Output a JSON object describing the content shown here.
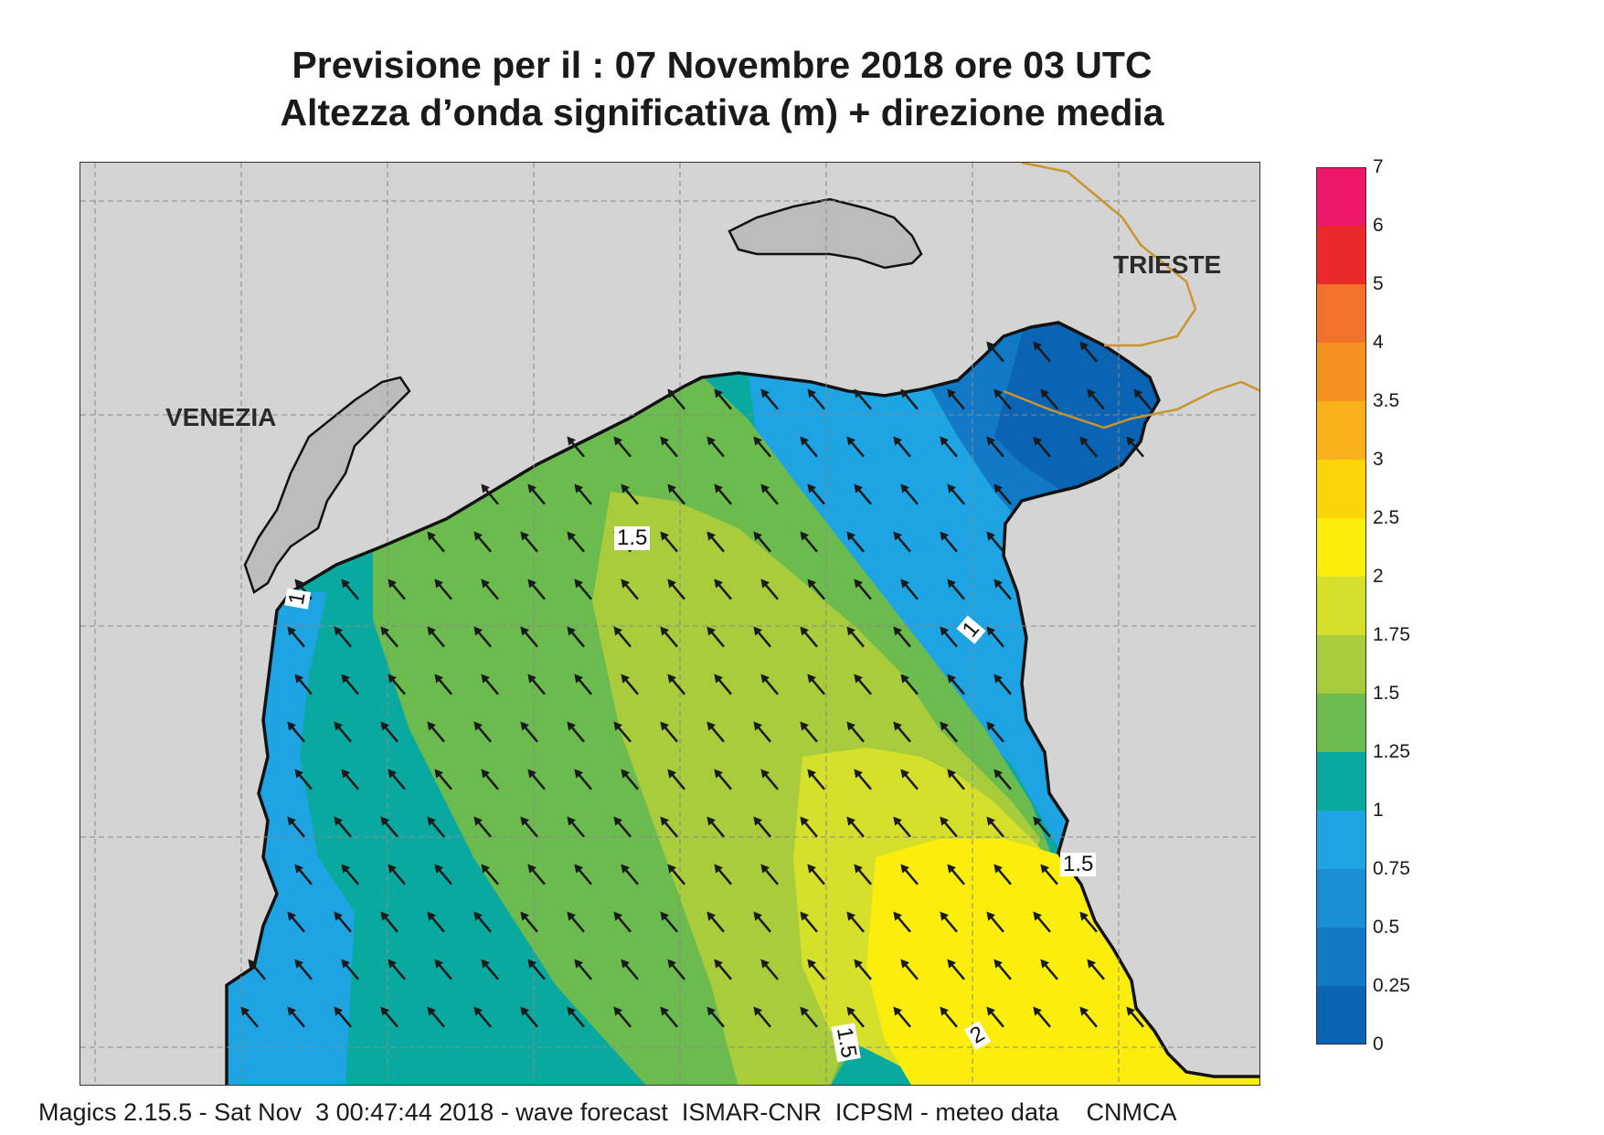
{
  "title": {
    "line1": "Previsione per il  :  07 Novembre  2018   ore 03 UTC",
    "line2": "Altezza d’onda significativa (m) + direzione media"
  },
  "map": {
    "cities": [
      {
        "id": "venezia",
        "name": "VENEZIA"
      },
      {
        "id": "trieste",
        "name": "TRIESTE"
      }
    ],
    "contour_labels": [
      {
        "id": "c1",
        "text": "1.5"
      },
      {
        "id": "c2",
        "text": "1"
      },
      {
        "id": "c3",
        "text": "1"
      },
      {
        "id": "c4",
        "text": "1.5"
      },
      {
        "id": "c5",
        "text": "1.5"
      },
      {
        "id": "c6",
        "text": "2"
      }
    ],
    "colors": {
      "land": "#d4d4d4",
      "c_0_25": "#0b63b3",
      "c_25_50": "#1179c6",
      "c_50_75": "#1a8fd6",
      "c_75_1": "#1ea3e3",
      "c_1_125": "#0aa9a0",
      "c_125_15": "#6bbb4f",
      "c_15_175": "#a8cc3c",
      "c_175_2": "#d5e02a",
      "c_2_25": "#fcee0c",
      "border": "#c9962e",
      "arrow": "#1a1a1a"
    },
    "arrow_direction": "northwest"
  },
  "legend": {
    "levels": [
      "7",
      "6",
      "5",
      "4",
      "3.5",
      "3",
      "2.5",
      "2",
      "1.75",
      "1.5",
      "1.25",
      "1",
      "0.75",
      "0.5",
      "0.25",
      "0"
    ],
    "colors": [
      "#ec1768",
      "#ea2a2a",
      "#f4712a",
      "#f7911f",
      "#f9b11b",
      "#fcd507",
      "#fcee0c",
      "#d5e02a",
      "#a8cc3c",
      "#6bbb4f",
      "#0aa9a0",
      "#1ea3e3",
      "#1a8fd6",
      "#1179c6",
      "#0b63b3"
    ]
  },
  "footer": "Magics 2.15.5 - Sat Nov  3 00:47:44 2018 - wave forecast  ISMAR-CNR  ICPSM - meteo data    CNMCA"
}
